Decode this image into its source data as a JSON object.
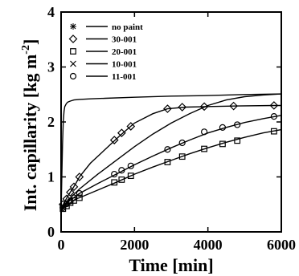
{
  "chart_data": {
    "type": "line",
    "xlabel": "Time [min]",
    "ylabel_main": "Int. capillarity [kg m",
    "ylabel_exponent": "-2",
    "ylabel_close": "]",
    "xlim": [
      0,
      6000
    ],
    "ylim": [
      0,
      4
    ],
    "x_ticks": [
      "0",
      "2000",
      "4000",
      "6000"
    ],
    "y_ticks": [
      "0",
      "1",
      "2",
      "3",
      "4"
    ],
    "grid": false,
    "legend_placement": "top-left",
    "series": [
      {
        "name": "no paint",
        "marker": "star",
        "x": [
          0,
          20,
          40,
          60,
          80,
          100,
          140,
          180,
          250,
          350,
          500,
          800,
          1200,
          2000,
          3000,
          4000,
          5000,
          6000
        ],
        "y": [
          0.35,
          1.0,
          1.6,
          2.0,
          2.2,
          2.28,
          2.33,
          2.36,
          2.38,
          2.4,
          2.41,
          2.42,
          2.43,
          2.45,
          2.47,
          2.48,
          2.5,
          2.51
        ],
        "markers_x": [],
        "markers_y": []
      },
      {
        "name": "30-001",
        "marker": "diamond",
        "x": [
          0,
          100,
          200,
          300,
          400,
          500,
          800,
          1200,
          1600,
          2000,
          2500,
          2900,
          3400,
          4000,
          4800,
          5800,
          6000
        ],
        "y": [
          0.42,
          0.55,
          0.67,
          0.77,
          0.88,
          1.0,
          1.25,
          1.5,
          1.75,
          1.98,
          2.15,
          2.24,
          2.27,
          2.28,
          2.29,
          2.3,
          2.3
        ],
        "markers_x": [
          50,
          150,
          250,
          350,
          500,
          1450,
          1650,
          1900,
          2900,
          3300,
          3900,
          4700,
          5800
        ],
        "markers_y": [
          0.5,
          0.6,
          0.72,
          0.82,
          1.0,
          1.67,
          1.8,
          1.92,
          2.24,
          2.27,
          2.28,
          2.29,
          2.3
        ]
      },
      {
        "name": "20-001",
        "marker": "square",
        "x": [
          0,
          100,
          200,
          300,
          400,
          500,
          1000,
          1500,
          2000,
          2500,
          3000,
          3500,
          4000,
          4500,
          5000,
          5500,
          6000
        ],
        "y": [
          0.38,
          0.45,
          0.5,
          0.55,
          0.6,
          0.62,
          0.76,
          0.9,
          1.05,
          1.18,
          1.3,
          1.42,
          1.53,
          1.63,
          1.72,
          1.8,
          1.86
        ],
        "markers_x": [
          50,
          150,
          250,
          350,
          500,
          1450,
          1650,
          1900,
          2900,
          3300,
          3900,
          4400,
          4800,
          5800
        ],
        "markers_y": [
          0.42,
          0.47,
          0.53,
          0.57,
          0.62,
          0.9,
          0.95,
          1.02,
          1.27,
          1.37,
          1.51,
          1.6,
          1.66,
          1.83
        ]
      },
      {
        "name": "10-001",
        "marker": "cross",
        "x": [
          0,
          100,
          200,
          300,
          500,
          1000,
          1500,
          2000,
          2500,
          3000,
          3500,
          4000,
          4500,
          5000,
          5500,
          6000
        ],
        "y": [
          0.4,
          0.5,
          0.58,
          0.65,
          0.78,
          1.05,
          1.3,
          1.55,
          1.78,
          1.98,
          2.15,
          2.3,
          2.4,
          2.46,
          2.49,
          2.51
        ],
        "markers_x": [],
        "markers_y": []
      },
      {
        "name": "11-001",
        "marker": "circle",
        "x": [
          0,
          100,
          200,
          300,
          500,
          1000,
          1500,
          2000,
          2500,
          3000,
          3500,
          4000,
          4500,
          5000,
          5500,
          6000
        ],
        "y": [
          0.4,
          0.48,
          0.55,
          0.6,
          0.7,
          0.88,
          1.05,
          1.22,
          1.38,
          1.53,
          1.67,
          1.8,
          1.9,
          1.99,
          2.06,
          2.12
        ],
        "markers_x": [
          50,
          150,
          250,
          350,
          500,
          1450,
          1650,
          1900,
          2900,
          3300,
          3900,
          4400,
          4800,
          5800
        ],
        "markers_y": [
          0.44,
          0.51,
          0.56,
          0.62,
          0.7,
          1.05,
          1.12,
          1.2,
          1.5,
          1.62,
          1.82,
          1.9,
          1.95,
          2.1
        ]
      }
    ]
  }
}
